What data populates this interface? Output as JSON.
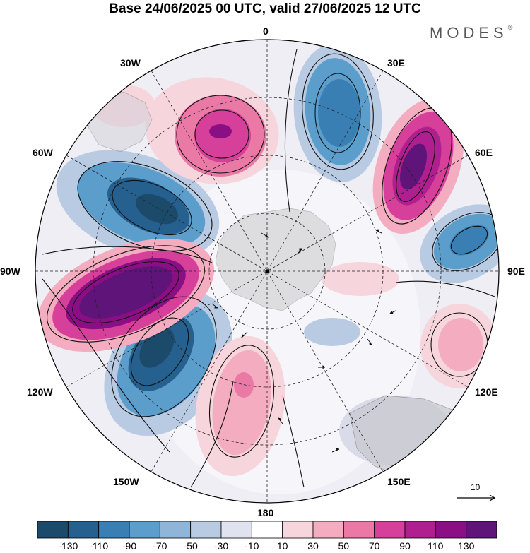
{
  "title": "Base 24/06/2025 00 UTC, valid 27/06/2025 12 UTC",
  "brand": "MODES",
  "brand_mark": "®",
  "longitude_labels": {
    "top": "0",
    "bottom": "180",
    "left": "90W",
    "right": "90E",
    "upper_left_1": "30W",
    "upper_left_2": "60W",
    "upper_right_1": "30E",
    "upper_right_2": "60E",
    "lower_left_1": "120W",
    "lower_left_2": "150W",
    "lower_right_1": "120E",
    "lower_right_2": "150E"
  },
  "reference_vector": {
    "value": "10"
  },
  "colorbar": {
    "colors": [
      "#1b4a6b",
      "#25608e",
      "#3a7fb4",
      "#5b9dcb",
      "#8fb6d9",
      "#b9cbe3",
      "#e1e2ef",
      "#ffffff",
      "#f7d5dc",
      "#f3acc0",
      "#ea7aa5",
      "#d6409a",
      "#b01f8f",
      "#8a0f84",
      "#5e1478"
    ],
    "labels": [
      "-130",
      "-110",
      "-90",
      "-70",
      "-50",
      "-30",
      "-10",
      "10",
      "30",
      "50",
      "70",
      "90",
      "110",
      "130"
    ]
  },
  "map_colors": {
    "strong_negative": "#1f5582",
    "negative": "#3c80b5",
    "weak_negative": "#9ebad9",
    "neutral": "#dedfec",
    "weak_positive": "#f3bcca",
    "positive": "#e478a6",
    "strong_positive": "#9b1a8b",
    "land": "#c8c8c8"
  }
}
